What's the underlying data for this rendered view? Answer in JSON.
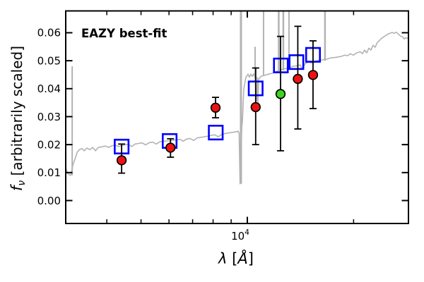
{
  "chart_data": {
    "type": "line",
    "description": "SED best-fit plot: gray model spectrum, blue open squares = model photometry, red circles with error bars = observed photometry, one green circle",
    "annotation": {
      "text": "EAZY best-fit",
      "color": "#ff0000"
    },
    "x_axis": {
      "scale": "log",
      "lim": [
        3060,
        28600
      ],
      "label_symbol": "λ",
      "label_bracket_open": " [",
      "label_angstrom": "Å",
      "label_bracket_close": "]",
      "major_ticks": [
        10000
      ],
      "major_tick_label": {
        "base": "10",
        "exponent": "4"
      },
      "minor_ticks": [
        4000,
        5000,
        6000,
        7000,
        8000,
        9000,
        20000
      ]
    },
    "y_axis": {
      "scale": "linear",
      "lim": [
        -0.0082,
        0.0678
      ],
      "label_symbol": "f",
      "label_sub": "ν",
      "label_unit": " [arbitrarily scaled]",
      "ticks": [
        {
          "value": 0.0,
          "label": "0.00"
        },
        {
          "value": 0.01,
          "label": "0.01"
        },
        {
          "value": 0.02,
          "label": "0.02"
        },
        {
          "value": 0.03,
          "label": "0.03"
        },
        {
          "value": 0.04,
          "label": "0.04"
        },
        {
          "value": 0.05,
          "label": "0.05"
        },
        {
          "value": 0.06,
          "label": "0.06"
        }
      ]
    },
    "colors": {
      "spectrum": "#b3b3b3",
      "model_squares": "#0000ff",
      "observed_circles": "#ee1111",
      "alt_circle": "#3dd41f",
      "errorbars": "#000000"
    },
    "series": [
      {
        "name": "model-spectrum",
        "type": "line",
        "points": [
          [
            3063,
            0.0115
          ],
          [
            3105,
            0.0095
          ],
          [
            3160,
            0.009
          ],
          [
            3210,
            0.013
          ],
          [
            3251,
            0.0148
          ],
          [
            3296,
            0.0172
          ],
          [
            3342,
            0.0182
          ],
          [
            3404,
            0.0186
          ],
          [
            3451,
            0.0178
          ],
          [
            3516,
            0.0188
          ],
          [
            3581,
            0.0182
          ],
          [
            3648,
            0.019
          ],
          [
            3715,
            0.0178
          ],
          [
            3784,
            0.019
          ],
          [
            3873,
            0.0192
          ],
          [
            3963,
            0.0195
          ],
          [
            4055,
            0.019
          ],
          [
            4130,
            0.0196
          ],
          [
            4226,
            0.0198
          ],
          [
            4325,
            0.0193
          ],
          [
            4406,
            0.0197
          ],
          [
            4508,
            0.0199
          ],
          [
            4613,
            0.0201
          ],
          [
            4699,
            0.0193
          ],
          [
            4808,
            0.0202
          ],
          [
            4920,
            0.0204
          ],
          [
            5035,
            0.0206
          ],
          [
            5152,
            0.0199
          ],
          [
            5272,
            0.0207
          ],
          [
            5395,
            0.0209
          ],
          [
            5521,
            0.0202
          ],
          [
            5649,
            0.021
          ],
          [
            5781,
            0.0212
          ],
          [
            5915,
            0.0213
          ],
          [
            6026,
            0.0214
          ],
          [
            6166,
            0.0216
          ],
          [
            6310,
            0.0217
          ],
          [
            6457,
            0.0219
          ],
          [
            6577,
            0.0212
          ],
          [
            6730,
            0.022
          ],
          [
            6887,
            0.0222
          ],
          [
            7047,
            0.0215
          ],
          [
            7211,
            0.0224
          ],
          [
            7379,
            0.0226
          ],
          [
            7551,
            0.0228
          ],
          [
            7727,
            0.023
          ],
          [
            7907,
            0.0233
          ],
          [
            8091,
            0.0235
          ],
          [
            8279,
            0.0228
          ],
          [
            8472,
            0.0237
          ],
          [
            8670,
            0.024
          ],
          [
            8872,
            0.0242
          ],
          [
            9078,
            0.0244
          ],
          [
            9290,
            0.0246
          ],
          [
            9419,
            0.0248
          ],
          [
            9480,
            0.024
          ],
          [
            9540,
            0.006
          ],
          [
            9650,
            0.0265
          ],
          [
            9683,
            0.028
          ],
          [
            9772,
            0.04
          ],
          [
            9905,
            0.044
          ],
          [
            10046,
            0.0452
          ],
          [
            10139,
            0.0441
          ],
          [
            10233,
            0.0452
          ],
          [
            10327,
            0.0444
          ],
          [
            10423,
            0.0453
          ],
          [
            10520,
            0.044
          ],
          [
            10617,
            0.0355
          ],
          [
            10666,
            0.044
          ],
          [
            10715,
            0.035
          ],
          [
            10765,
            0.0435
          ],
          [
            10864,
            0.044
          ],
          [
            10965,
            0.0445
          ],
          [
            11220,
            0.0448
          ],
          [
            11482,
            0.0452
          ],
          [
            11749,
            0.0455
          ],
          [
            12023,
            0.046
          ],
          [
            12303,
            0.0465
          ],
          [
            12589,
            0.047
          ],
          [
            12882,
            0.0472
          ],
          [
            13183,
            0.0476
          ],
          [
            13490,
            0.048
          ],
          [
            13804,
            0.0482
          ],
          [
            14125,
            0.0485
          ],
          [
            14322,
            0.047
          ],
          [
            14588,
            0.049
          ],
          [
            14928,
            0.0495
          ],
          [
            15205,
            0.0492
          ],
          [
            15488,
            0.0498
          ],
          [
            15849,
            0.05
          ],
          [
            16218,
            0.0502
          ],
          [
            16444,
            0.0504
          ],
          [
            16749,
            0.0505
          ],
          [
            17219,
            0.051
          ],
          [
            17783,
            0.0512
          ],
          [
            18365,
            0.0515
          ],
          [
            18879,
            0.052
          ],
          [
            19231,
            0.0518
          ],
          [
            19588,
            0.0525
          ],
          [
            19953,
            0.052
          ],
          [
            20417,
            0.0528
          ],
          [
            20893,
            0.0532
          ],
          [
            21184,
            0.0525
          ],
          [
            21478,
            0.0538
          ],
          [
            21777,
            0.0528
          ],
          [
            22080,
            0.0545
          ],
          [
            22387,
            0.0538
          ],
          [
            22699,
            0.0555
          ],
          [
            23014,
            0.0548
          ],
          [
            23335,
            0.0565
          ],
          [
            23659,
            0.0572
          ],
          [
            23988,
            0.058
          ],
          [
            24322,
            0.0585
          ],
          [
            24660,
            0.059
          ],
          [
            25003,
            0.0595
          ],
          [
            25351,
            0.0598
          ],
          [
            25704,
            0.0601
          ],
          [
            26062,
            0.0598
          ],
          [
            26424,
            0.0602
          ],
          [
            26792,
            0.0595
          ],
          [
            27164,
            0.0588
          ],
          [
            27542,
            0.0585
          ],
          [
            27797,
            0.0578
          ],
          [
            28054,
            0.0582
          ],
          [
            28314,
            0.058
          ],
          [
            28576,
            0.0582
          ]
        ]
      },
      {
        "name": "emission-lines",
        "type": "vlines",
        "lines": [
          {
            "lambda": 3192,
            "f_from": 0.009,
            "f_to": 0.048,
            "w": 2.0
          },
          {
            "lambda": 9594,
            "f_from": 0.006,
            "f_to": 0.068,
            "w": 3.0
          },
          {
            "lambda": 10520,
            "f_from": 0.044,
            "f_to": 0.055,
            "w": 2.0
          },
          {
            "lambda": 11117,
            "f_from": 0.0445,
            "f_to": 0.068,
            "w": 2.0
          },
          {
            "lambda": 12274,
            "f_from": 0.046,
            "f_to": 0.068,
            "w": 2.5
          },
          {
            "lambda": 12647,
            "f_from": 0.0465,
            "f_to": 0.068,
            "w": 2.5
          },
          {
            "lambda": 13122,
            "f_from": 0.047,
            "f_to": 0.068,
            "w": 2.0
          },
          {
            "lambda": 16596,
            "f_from": 0.05,
            "f_to": 0.068,
            "w": 2.5
          }
        ]
      },
      {
        "name": "model-photometry",
        "type": "scatter",
        "marker": "open-square",
        "points": [
          [
            4406,
            0.0193
          ],
          [
            6026,
            0.0213
          ],
          [
            8140,
            0.0243
          ],
          [
            10560,
            0.0401
          ],
          [
            12446,
            0.0483
          ],
          [
            13772,
            0.0495
          ],
          [
            15350,
            0.0521
          ]
        ]
      },
      {
        "name": "observed-photometry",
        "type": "scatter-errorbar",
        "marker": "filled-circle",
        "points": [
          {
            "lambda": 4406,
            "flux": 0.0144,
            "err_lo": 0.0098,
            "err_hi": 0.0202
          },
          {
            "lambda": 6060,
            "flux": 0.0189,
            "err_lo": 0.0155,
            "err_hi": 0.0221
          },
          {
            "lambda": 8128,
            "flux": 0.0332,
            "err_lo": 0.0296,
            "err_hi": 0.0369
          },
          {
            "lambda": 10560,
            "flux": 0.0334,
            "err_lo": 0.02,
            "err_hi": 0.0474
          },
          {
            "lambda": 13900,
            "flux": 0.0435,
            "err_lo": 0.0256,
            "err_hi": 0.0623
          },
          {
            "lambda": 15350,
            "flux": 0.0449,
            "err_lo": 0.0329,
            "err_hi": 0.0571
          }
        ]
      },
      {
        "name": "observed-photometry-alt",
        "type": "scatter-errorbar",
        "marker": "filled-circle",
        "points": [
          {
            "lambda": 12420,
            "flux": 0.0381,
            "err_lo": 0.0178,
            "err_hi": 0.0587
          }
        ]
      }
    ]
  }
}
